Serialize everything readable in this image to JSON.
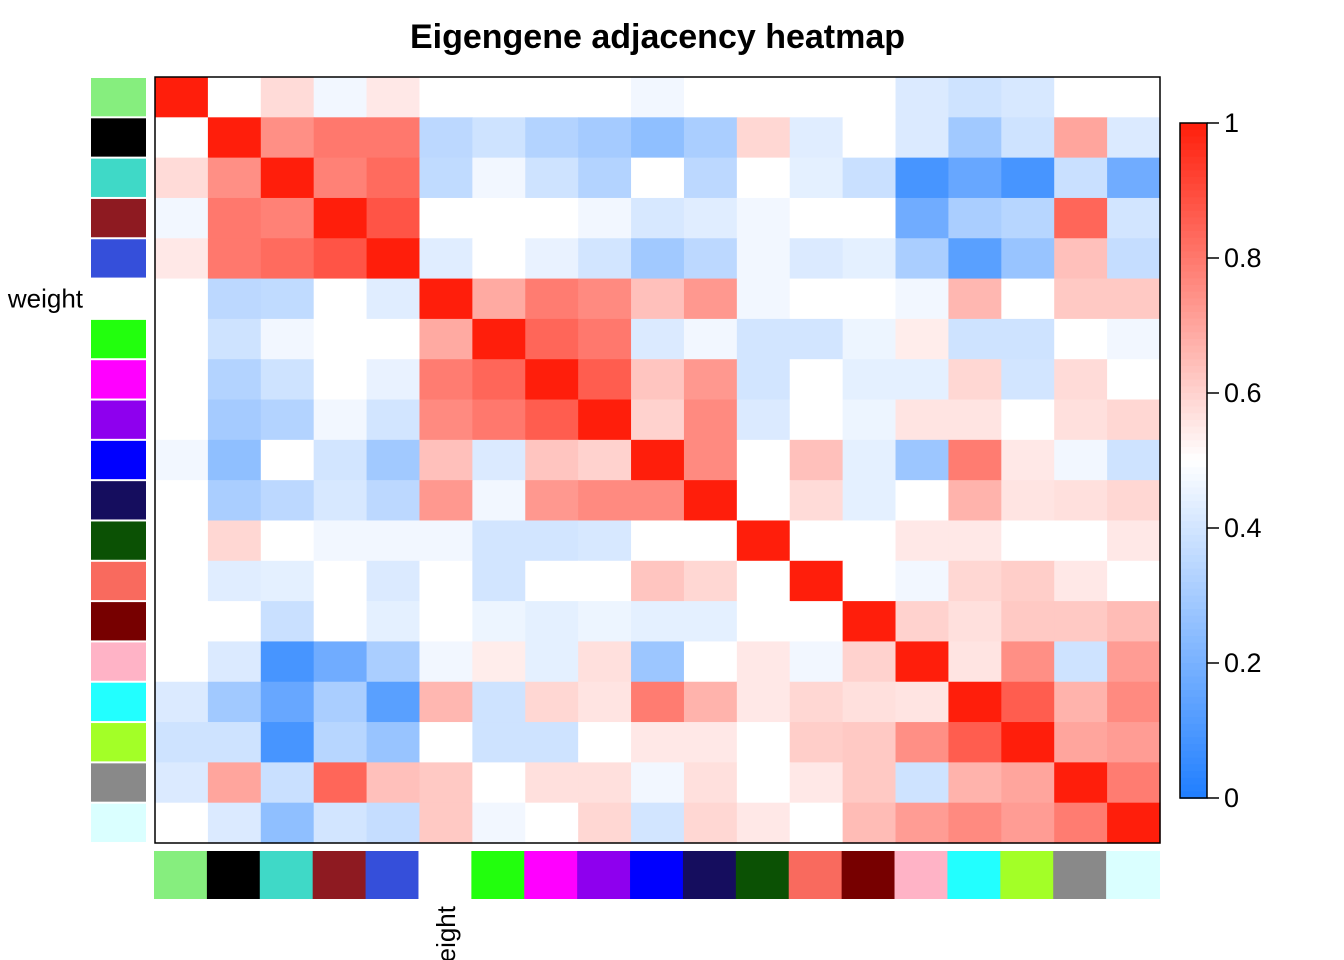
{
  "chart_data": {
    "type": "heatmap",
    "title": "Eigengene adjacency heatmap",
    "xlabel": "",
    "ylabel": "",
    "modules": [
      {
        "name": "lightgreen",
        "color": "#86EE7E"
      },
      {
        "name": "black",
        "color": "#000000"
      },
      {
        "name": "turquoise",
        "color": "#3FD9C7"
      },
      {
        "name": "brown",
        "color": "#8E1A21"
      },
      {
        "name": "royalblue",
        "color": "#354FDA"
      },
      {
        "name": "weight",
        "color": "#FFFFFF",
        "label": "weight"
      },
      {
        "name": "green",
        "color": "#22FF0D"
      },
      {
        "name": "magenta",
        "color": "#FF00FF"
      },
      {
        "name": "purple",
        "color": "#8E00EE"
      },
      {
        "name": "blue",
        "color": "#0000FF"
      },
      {
        "name": "midnightblue",
        "color": "#150D5E"
      },
      {
        "name": "darkgreen",
        "color": "#0B5104"
      },
      {
        "name": "salmon",
        "color": "#F96A5E"
      },
      {
        "name": "darkred",
        "color": "#770000"
      },
      {
        "name": "pink",
        "color": "#FFB3C6"
      },
      {
        "name": "cyan",
        "color": "#22FFFF"
      },
      {
        "name": "greenyellow",
        "color": "#A3FF27"
      },
      {
        "name": "grey60",
        "color": "#898989"
      },
      {
        "name": "lightcyan",
        "color": "#DAFFFF"
      }
    ],
    "values": [
      [
        1.0,
        0.5,
        0.58,
        0.47,
        0.55,
        0.5,
        0.5,
        0.5,
        0.5,
        0.47,
        0.5,
        0.5,
        0.5,
        0.5,
        0.42,
        0.39,
        0.41,
        0.5,
        0.5
      ],
      [
        0.5,
        1.0,
        0.75,
        0.8,
        0.8,
        0.35,
        0.39,
        0.33,
        0.3,
        0.25,
        0.31,
        0.59,
        0.43,
        0.5,
        0.42,
        0.29,
        0.39,
        0.7,
        0.42
      ],
      [
        0.58,
        0.75,
        1.0,
        0.78,
        0.83,
        0.36,
        0.47,
        0.39,
        0.33,
        0.5,
        0.35,
        0.5,
        0.44,
        0.38,
        0.09,
        0.16,
        0.09,
        0.38,
        0.18
      ],
      [
        0.47,
        0.8,
        0.78,
        1.0,
        0.88,
        0.5,
        0.5,
        0.5,
        0.47,
        0.41,
        0.43,
        0.47,
        0.5,
        0.5,
        0.18,
        0.31,
        0.34,
        0.84,
        0.4
      ],
      [
        0.55,
        0.8,
        0.83,
        0.88,
        1.0,
        0.43,
        0.5,
        0.45,
        0.4,
        0.29,
        0.35,
        0.47,
        0.42,
        0.44,
        0.31,
        0.13,
        0.27,
        0.64,
        0.37
      ],
      [
        0.5,
        0.35,
        0.36,
        0.5,
        0.43,
        1.0,
        0.69,
        0.79,
        0.76,
        0.64,
        0.73,
        0.47,
        0.5,
        0.5,
        0.47,
        0.66,
        0.5,
        0.62,
        0.62
      ],
      [
        0.5,
        0.39,
        0.47,
        0.5,
        0.5,
        0.69,
        1.0,
        0.84,
        0.8,
        0.42,
        0.47,
        0.4,
        0.4,
        0.46,
        0.54,
        0.39,
        0.39,
        0.5,
        0.47
      ],
      [
        0.5,
        0.33,
        0.39,
        0.5,
        0.45,
        0.79,
        0.84,
        1.0,
        0.86,
        0.63,
        0.73,
        0.4,
        0.5,
        0.44,
        0.44,
        0.59,
        0.4,
        0.58,
        0.5
      ],
      [
        0.5,
        0.3,
        0.33,
        0.47,
        0.4,
        0.76,
        0.8,
        0.86,
        1.0,
        0.6,
        0.76,
        0.42,
        0.5,
        0.46,
        0.56,
        0.56,
        0.5,
        0.57,
        0.59
      ],
      [
        0.47,
        0.25,
        0.5,
        0.4,
        0.29,
        0.64,
        0.42,
        0.63,
        0.6,
        1.0,
        0.76,
        0.5,
        0.64,
        0.44,
        0.28,
        0.79,
        0.55,
        0.47,
        0.39
      ],
      [
        0.5,
        0.31,
        0.35,
        0.41,
        0.35,
        0.73,
        0.47,
        0.73,
        0.76,
        0.76,
        1.0,
        0.5,
        0.58,
        0.44,
        0.5,
        0.67,
        0.56,
        0.57,
        0.59
      ],
      [
        0.5,
        0.59,
        0.5,
        0.47,
        0.47,
        0.47,
        0.4,
        0.4,
        0.41,
        0.5,
        0.5,
        1.0,
        0.5,
        0.5,
        0.55,
        0.55,
        0.5,
        0.5,
        0.55
      ],
      [
        0.5,
        0.43,
        0.44,
        0.5,
        0.42,
        0.5,
        0.4,
        0.5,
        0.5,
        0.63,
        0.59,
        0.5,
        1.0,
        0.5,
        0.47,
        0.59,
        0.61,
        0.55,
        0.5
      ],
      [
        0.5,
        0.5,
        0.38,
        0.5,
        0.44,
        0.5,
        0.46,
        0.44,
        0.46,
        0.44,
        0.44,
        0.5,
        0.5,
        1.0,
        0.6,
        0.57,
        0.62,
        0.62,
        0.65
      ],
      [
        0.5,
        0.42,
        0.09,
        0.18,
        0.31,
        0.47,
        0.54,
        0.44,
        0.57,
        0.28,
        0.5,
        0.55,
        0.47,
        0.6,
        1.0,
        0.56,
        0.75,
        0.39,
        0.72
      ],
      [
        0.42,
        0.29,
        0.16,
        0.31,
        0.13,
        0.66,
        0.39,
        0.59,
        0.56,
        0.79,
        0.67,
        0.55,
        0.59,
        0.57,
        0.56,
        1.0,
        0.86,
        0.67,
        0.76
      ],
      [
        0.39,
        0.39,
        0.09,
        0.34,
        0.27,
        0.5,
        0.39,
        0.39,
        0.5,
        0.55,
        0.55,
        0.5,
        0.61,
        0.62,
        0.75,
        0.86,
        1.0,
        0.7,
        0.72
      ],
      [
        0.42,
        0.7,
        0.38,
        0.84,
        0.64,
        0.62,
        0.5,
        0.57,
        0.57,
        0.47,
        0.57,
        0.5,
        0.55,
        0.62,
        0.39,
        0.67,
        0.7,
        1.0,
        0.79
      ],
      [
        0.5,
        0.42,
        0.25,
        0.4,
        0.37,
        0.62,
        0.47,
        0.5,
        0.59,
        0.4,
        0.59,
        0.55,
        0.5,
        0.65,
        0.72,
        0.76,
        0.72,
        0.79,
        1.0
      ]
    ],
    "colorbar": {
      "min": 0,
      "max": 1,
      "ticks": [
        "0",
        "0.2",
        "0.4",
        "0.6",
        "0.8",
        "1"
      ],
      "low_color": "#1F7EFF",
      "mid_color": "#FFFFFF",
      "high_color": "#FF1E0B"
    }
  }
}
